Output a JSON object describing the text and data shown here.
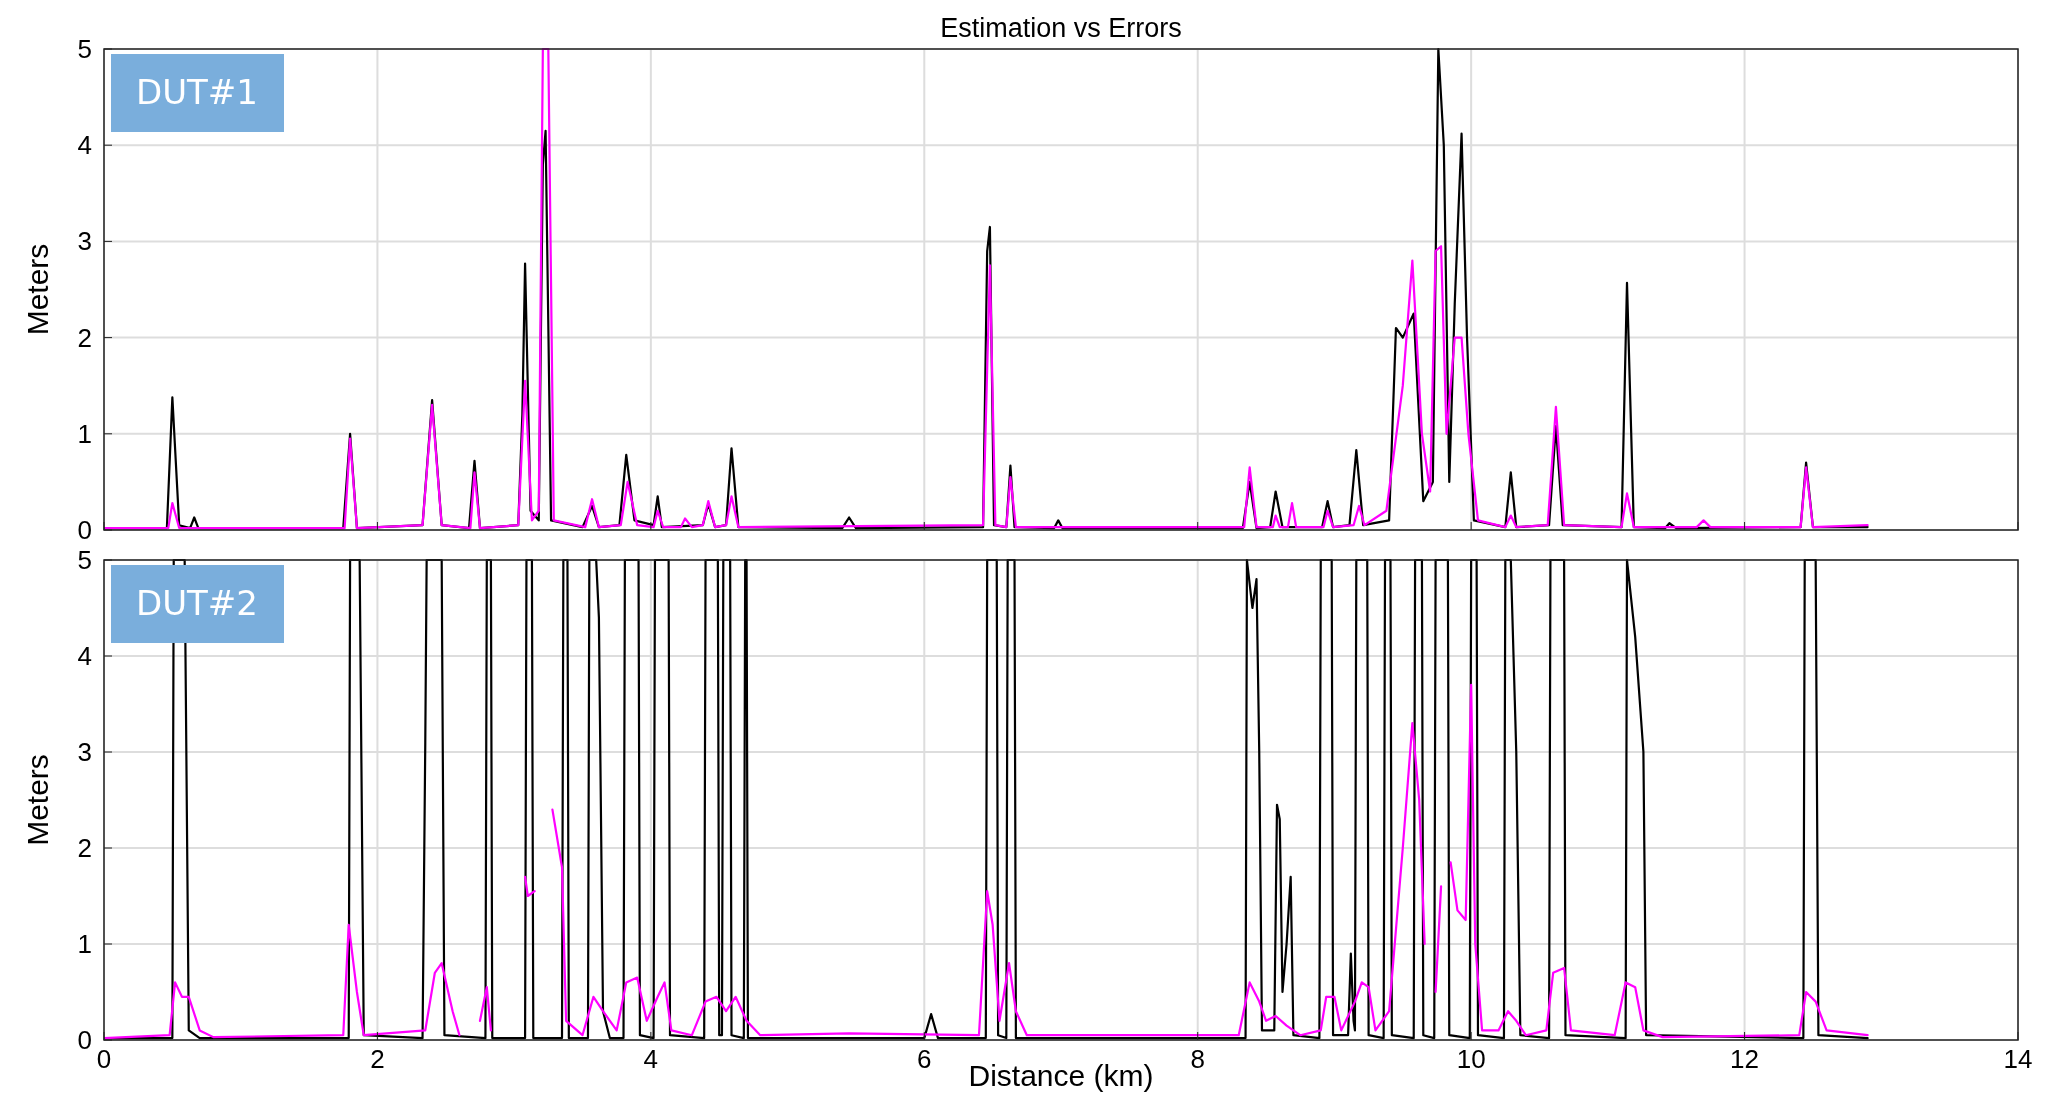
{
  "chart_data": [
    {
      "type": "line",
      "title": "Estimation vs Errors",
      "ylabel": "Meters",
      "annotations": [
        "DUT#1"
      ],
      "xlim": [
        0,
        14
      ],
      "xticks": [
        0,
        2,
        4,
        6,
        8,
        10,
        12,
        14
      ],
      "ylim": [
        0,
        5
      ],
      "yticks": [
        0,
        1,
        2,
        3,
        4,
        5
      ],
      "grid": true,
      "tick_labels": "y",
      "line_style": "solid",
      "series": [
        {
          "color": "#000000",
          "x": [
            0,
            0.46,
            0.5,
            0.55,
            0.63,
            0.66,
            0.69,
            1.75,
            1.8,
            1.85,
            2.33,
            2.4,
            2.47,
            2.67,
            2.71,
            2.75,
            3.03,
            3.06,
            3.08,
            3.12,
            3.18,
            3.21,
            3.23,
            3.27,
            3.5,
            3.57,
            3.62,
            3.77,
            3.82,
            3.88,
            4.02,
            4.05,
            4.08,
            4.38,
            4.42,
            4.47,
            4.55,
            4.59,
            4.64,
            5.4,
            5.45,
            5.5,
            6.43,
            6.46,
            6.48,
            6.51,
            6.6,
            6.63,
            6.66,
            6.95,
            6.98,
            7.01,
            8.33,
            8.38,
            8.43,
            8.53,
            8.57,
            8.62,
            8.91,
            8.95,
            8.99,
            9.11,
            9.16,
            9.21,
            9.4,
            9.45,
            9.5,
            9.58,
            9.65,
            9.72,
            9.76,
            9.8,
            9.84,
            9.88,
            9.93,
            9.97,
            10.02,
            10.25,
            10.29,
            10.33,
            10.57,
            10.62,
            10.67,
            11.1,
            11.14,
            11.19,
            11.42,
            11.45,
            11.5,
            12.41,
            12.45,
            12.5,
            12.9
          ],
          "values": [
            0.02,
            0.02,
            1.38,
            0.05,
            0.02,
            0.13,
            0.02,
            0.02,
            1.0,
            0.02,
            0.05,
            1.35,
            0.05,
            0.02,
            0.72,
            0.02,
            0.05,
            1.2,
            2.77,
            0.2,
            0.1,
            3.8,
            4.15,
            0.1,
            0.03,
            0.25,
            0.03,
            0.05,
            0.78,
            0.1,
            0.05,
            0.35,
            0.03,
            0.05,
            0.27,
            0.03,
            0.05,
            0.85,
            0.03,
            0.02,
            0.13,
            0.02,
            0.03,
            2.9,
            3.15,
            0.05,
            0.03,
            0.67,
            0.03,
            0.02,
            0.1,
            0.02,
            0.02,
            0.5,
            0.02,
            0.03,
            0.4,
            0.03,
            0.03,
            0.3,
            0.03,
            0.05,
            0.83,
            0.05,
            0.1,
            2.1,
            2.0,
            2.25,
            0.3,
            0.5,
            5.0,
            4.0,
            0.5,
            2.35,
            4.12,
            2.0,
            0.1,
            0.03,
            0.6,
            0.03,
            0.05,
            1.08,
            0.05,
            0.03,
            2.57,
            0.03,
            0.02,
            0.07,
            0.02,
            0.03,
            0.7,
            0.03,
            0.03
          ]
        },
        {
          "color": "#ff00ff",
          "x": [
            0,
            0.47,
            0.5,
            0.55,
            1.76,
            1.8,
            1.85,
            2.33,
            2.4,
            2.47,
            2.68,
            2.71,
            2.75,
            3.03,
            3.08,
            3.13,
            3.18,
            3.21,
            3.25,
            3.29,
            3.52,
            3.57,
            3.62,
            3.78,
            3.83,
            3.9,
            4.02,
            4.05,
            4.09,
            4.22,
            4.25,
            4.3,
            4.38,
            4.42,
            4.47,
            4.55,
            4.59,
            4.64,
            6.43,
            6.48,
            6.52,
            6.6,
            6.63,
            6.67,
            8.34,
            8.38,
            8.43,
            8.55,
            8.57,
            8.6,
            8.66,
            8.69,
            8.72,
            8.92,
            8.95,
            8.99,
            9.14,
            9.18,
            9.22,
            9.38,
            9.5,
            9.57,
            9.64,
            9.7,
            9.74,
            9.78,
            9.82,
            9.88,
            9.93,
            9.98,
            10.05,
            10.25,
            10.29,
            10.33,
            10.56,
            10.62,
            10.68,
            11.1,
            11.14,
            11.19,
            11.65,
            11.7,
            11.75,
            12.41,
            12.45,
            12.5,
            12.9
          ],
          "values": [
            0.02,
            0.02,
            0.28,
            0.02,
            0.02,
            0.95,
            0.02,
            0.05,
            1.3,
            0.05,
            0.02,
            0.6,
            0.02,
            0.05,
            1.55,
            0.1,
            0.2,
            5.0,
            5.0,
            0.1,
            0.03,
            0.32,
            0.03,
            0.05,
            0.5,
            0.05,
            0.03,
            0.2,
            0.03,
            0.03,
            0.12,
            0.03,
            0.05,
            0.3,
            0.03,
            0.05,
            0.35,
            0.03,
            0.05,
            2.75,
            0.05,
            0.03,
            0.55,
            0.03,
            0.03,
            0.65,
            0.03,
            0.03,
            0.15,
            0.03,
            0.03,
            0.28,
            0.03,
            0.03,
            0.2,
            0.03,
            0.05,
            0.25,
            0.05,
            0.2,
            1.5,
            2.8,
            1.0,
            0.4,
            2.9,
            2.95,
            1.0,
            2.0,
            2.0,
            1.0,
            0.1,
            0.03,
            0.15,
            0.03,
            0.05,
            1.28,
            0.05,
            0.03,
            0.38,
            0.03,
            0.03,
            0.1,
            0.03,
            0.03,
            0.65,
            0.03,
            0.05
          ]
        }
      ]
    },
    {
      "type": "line",
      "ylabel": "Meters",
      "xlabel": "Distance (km)",
      "annotations": [
        "DUT#2"
      ],
      "xlim": [
        0,
        14
      ],
      "xticks": [
        0,
        2,
        4,
        6,
        8,
        10,
        12,
        14
      ],
      "ylim": [
        0,
        5
      ],
      "yticks": [
        0,
        1,
        2,
        3,
        4,
        5
      ],
      "grid": true,
      "line_style": "solid",
      "series": [
        {
          "color": "#000000",
          "x": [
            0,
            0.5,
            0.51,
            0.59,
            0.62,
            0.7,
            1.79,
            1.8,
            1.87,
            1.9,
            2.33,
            2.35,
            2.36,
            2.47,
            2.49,
            2.79,
            2.8,
            2.83,
            2.84,
            3.08,
            3.09,
            3.13,
            3.14,
            3.35,
            3.36,
            3.39,
            3.4,
            3.54,
            3.55,
            3.6,
            3.62,
            3.65,
            3.7,
            3.8,
            3.81,
            3.91,
            3.92,
            4.02,
            4.03,
            4.13,
            4.14,
            4.39,
            4.4,
            4.49,
            4.5,
            4.52,
            4.53,
            4.58,
            4.59,
            4.68,
            4.69,
            4.7,
            4.71,
            6.0,
            6.05,
            6.1,
            6.45,
            6.46,
            6.53,
            6.54,
            6.6,
            6.61,
            6.66,
            6.67,
            8.35,
            8.36,
            8.4,
            8.43,
            8.45,
            8.47,
            8.56,
            8.58,
            8.6,
            8.62,
            8.65,
            8.68,
            8.7,
            8.89,
            8.9,
            8.98,
            8.99,
            9.1,
            9.12,
            9.14,
            9.15,
            9.16,
            9.24,
            9.25,
            9.36,
            9.37,
            9.41,
            9.42,
            9.58,
            9.59,
            9.64,
            9.65,
            9.73,
            9.74,
            9.83,
            9.84,
            9.99,
            10.0,
            10.04,
            10.05,
            10.24,
            10.25,
            10.29,
            10.33,
            10.36,
            10.57,
            10.58,
            10.68,
            10.69,
            11.13,
            11.14,
            11.2,
            11.26,
            11.28,
            12.43,
            12.44,
            12.52,
            12.54,
            12.9
          ],
          "values": [
            0.02,
            0.02,
            5,
            5,
            0.1,
            0.02,
            0.02,
            5,
            5,
            0.05,
            0.02,
            3.1,
            5,
            5,
            0.05,
            0.02,
            5,
            5,
            0.02,
            0.02,
            5,
            5,
            0.02,
            0.02,
            5,
            5,
            0.02,
            0.02,
            5,
            5,
            4.4,
            0.3,
            0.02,
            0.02,
            5,
            5,
            0.05,
            0.02,
            5,
            5,
            0.05,
            0.02,
            5,
            5,
            0.05,
            0.05,
            5,
            5,
            0.05,
            0.02,
            5,
            5,
            0.02,
            0.02,
            0.27,
            0.02,
            0.02,
            5,
            5,
            0.05,
            0.02,
            5,
            5,
            0.02,
            0.02,
            5,
            4.5,
            4.8,
            3.0,
            0.1,
            0.1,
            2.45,
            2.3,
            0.5,
            1.0,
            1.7,
            0.05,
            0.02,
            5,
            5,
            0.05,
            0.05,
            0.9,
            0.2,
            0.1,
            5,
            5,
            0.05,
            0.02,
            5,
            5,
            0.05,
            0.02,
            5,
            5,
            0.05,
            0.02,
            5,
            5,
            0.05,
            0.02,
            5,
            5,
            0.05,
            0.02,
            5,
            5,
            3.0,
            0.05,
            0.02,
            5,
            5,
            0.05,
            0.02,
            5,
            4.2,
            3.0,
            0.05,
            0.02,
            5,
            5,
            0.05,
            0.02
          ]
        },
        {
          "color": "#ff00ff",
          "x": [
            0,
            0.48,
            0.52,
            0.57,
            0.62,
            0.7,
            0.8,
            1.75,
            1.79,
            1.85,
            1.9,
            2.35,
            2.42,
            2.47,
            2.55,
            2.6,
            2.68,
            2.75,
            2.8,
            2.83,
            2.9,
            3.08,
            3.1,
            3.15,
            3.2,
            3.28,
            3.35,
            3.38,
            3.5,
            3.58,
            3.65,
            3.75,
            3.82,
            3.9,
            3.97,
            4.05,
            4.1,
            4.15,
            4.3,
            4.4,
            4.48,
            4.55,
            4.62,
            4.7,
            4.8,
            5.45,
            6.4,
            6.46,
            6.5,
            6.55,
            6.62,
            6.67,
            6.75,
            8.3,
            8.38,
            8.45,
            8.5,
            8.57,
            8.65,
            8.75,
            8.9,
            8.94,
            9.0,
            9.05,
            9.15,
            9.2,
            9.25,
            9.3,
            9.4,
            9.5,
            9.57,
            9.62,
            9.66,
            9.7,
            9.74,
            9.78,
            9.81,
            9.85,
            9.9,
            9.96,
            10.0,
            10.03,
            10.08,
            10.2,
            10.27,
            10.33,
            10.4,
            10.55,
            10.6,
            10.68,
            10.73,
            11.05,
            11.13,
            11.2,
            11.26,
            11.4,
            12.4,
            12.45,
            12.52,
            12.6,
            12.9
          ],
          "values": [
            0.02,
            0.05,
            0.6,
            0.45,
            0.45,
            0.1,
            0.03,
            0.05,
            1.2,
            0.5,
            0.05,
            0.1,
            0.7,
            0.8,
            0.3,
            0.05,
            null,
            0.2,
            0.55,
            0.1,
            null,
            1.7,
            1.5,
            1.55,
            null,
            2.4,
            1.8,
            0.2,
            0.05,
            0.45,
            0.3,
            0.1,
            0.6,
            0.65,
            0.2,
            0.45,
            0.6,
            0.1,
            0.05,
            0.4,
            0.45,
            0.3,
            0.45,
            0.2,
            0.05,
            0.07,
            0.05,
            1.55,
            1.2,
            0.2,
            0.8,
            0.3,
            0.05,
            0.05,
            0.6,
            0.4,
            0.2,
            0.25,
            0.15,
            0.05,
            0.1,
            0.45,
            0.45,
            0.1,
            0.4,
            0.6,
            0.55,
            0.1,
            0.3,
            2.0,
            3.3,
            2.5,
            1.0,
            null,
            0.5,
            1.6,
            null,
            1.85,
            1.35,
            1.25,
            3.7,
            1.0,
            0.1,
            0.1,
            0.3,
            0.2,
            0.05,
            0.1,
            0.7,
            0.75,
            0.1,
            0.05,
            0.6,
            0.55,
            0.1,
            0.03,
            0.05,
            0.5,
            0.4,
            0.1,
            0.05
          ]
        }
      ]
    }
  ]
}
